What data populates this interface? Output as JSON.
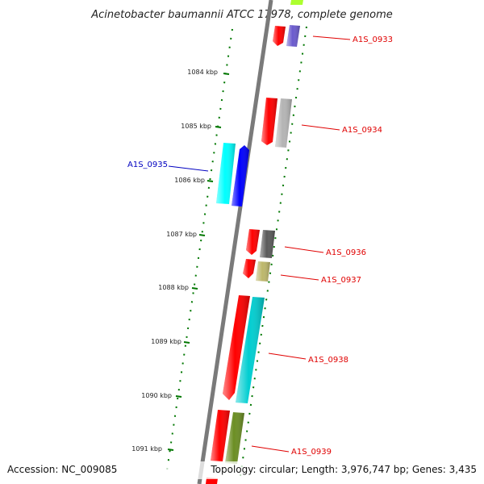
{
  "title": "Acinetobacter baumannii ATCC 17978, complete genome",
  "footer": {
    "accession": "Accession: NC_009085",
    "topology": "Topology: circular; Length: 3,976,747 bp; Genes: 3,435"
  },
  "ticks": [
    "1084 kbp",
    "1085 kbp",
    "1086 kbp",
    "1087 kbp",
    "1088 kbp",
    "1089 kbp",
    "1090 kbp",
    "1091 kbp"
  ],
  "genes": [
    {
      "label": "A1S_0933",
      "color": "#6a5acd"
    },
    {
      "label": "A1S_0934",
      "color": "#b4b4b4"
    },
    {
      "label": "A1S_0935",
      "color": "#00ffff"
    },
    {
      "label": "A1S_0936",
      "color": "#5a5a5a"
    },
    {
      "label": "A1S_0937",
      "color": "#bdb76b"
    },
    {
      "label": "A1S_0938",
      "color": "#00ced1"
    },
    {
      "label": "A1S_0939",
      "color": "#6b8e23"
    }
  ],
  "colors": {
    "cds_forward": "#ff0000",
    "cds_reverse": "#0000ff",
    "label_red": "#e00000",
    "label_blue": "#0000c0",
    "tick_green": "#007700",
    "backbone": "#808080"
  }
}
